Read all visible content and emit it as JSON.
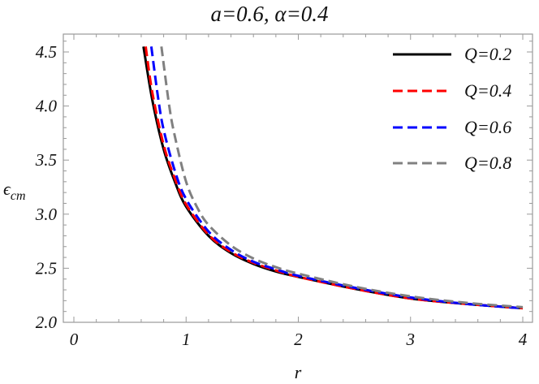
{
  "chart_data": {
    "type": "line",
    "title": "a=0.6, α=0.4",
    "xlabel": "r",
    "ylabel": "ε_cm",
    "ylabel_main": "ϵ",
    "ylabel_sub": "cm",
    "xlim": [
      -0.1,
      4.1
    ],
    "ylim": [
      2.0,
      4.62
    ],
    "xticks": [
      "0",
      "1",
      "2",
      "3",
      "4"
    ],
    "xtick_values": [
      0,
      1,
      2,
      3,
      4
    ],
    "yticks": [
      "2.0",
      "2.5",
      "3.0",
      "3.5",
      "4.0",
      "4.5"
    ],
    "ytick_values": [
      2.0,
      2.5,
      3.0,
      3.5,
      4.0,
      4.5
    ],
    "grid": false,
    "legend_position": "upper right",
    "series": [
      {
        "name": "Q=0.2",
        "color": "#000000",
        "dash": "solid",
        "x": [
          0.62,
          0.7,
          0.8,
          0.9,
          1.0,
          1.2,
          1.4,
          1.6,
          1.8,
          2.0,
          2.5,
          3.0,
          3.5,
          4.0
        ],
        "y": [
          4.55,
          4.05,
          3.6,
          3.3,
          3.07,
          2.8,
          2.64,
          2.54,
          2.47,
          2.42,
          2.31,
          2.22,
          2.17,
          2.13
        ]
      },
      {
        "name": "Q=0.4",
        "color": "#ff0000",
        "dash": "dashed",
        "x": [
          0.64,
          0.7,
          0.8,
          0.9,
          1.0,
          1.2,
          1.4,
          1.6,
          1.8,
          2.0,
          2.5,
          3.0,
          3.5,
          4.0
        ],
        "y": [
          4.55,
          4.12,
          3.64,
          3.33,
          3.09,
          2.81,
          2.65,
          2.55,
          2.48,
          2.42,
          2.31,
          2.22,
          2.17,
          2.13
        ]
      },
      {
        "name": "Q=0.6",
        "color": "#0000ff",
        "dash": "dashed",
        "x": [
          0.69,
          0.75,
          0.8,
          0.9,
          1.0,
          1.2,
          1.4,
          1.6,
          1.8,
          2.0,
          2.5,
          3.0,
          3.5,
          4.0
        ],
        "y": [
          4.55,
          4.08,
          3.78,
          3.4,
          3.14,
          2.84,
          2.67,
          2.56,
          2.49,
          2.43,
          2.32,
          2.23,
          2.17,
          2.13
        ]
      },
      {
        "name": "Q=0.8",
        "color": "#808080",
        "dash": "dashed",
        "x": [
          0.78,
          0.85,
          0.9,
          1.0,
          1.1,
          1.2,
          1.4,
          1.6,
          1.8,
          2.0,
          2.5,
          3.0,
          3.5,
          4.0
        ],
        "y": [
          4.55,
          4.0,
          3.72,
          3.3,
          3.06,
          2.9,
          2.71,
          2.59,
          2.51,
          2.45,
          2.33,
          2.24,
          2.18,
          2.14
        ]
      }
    ]
  },
  "legend": {
    "items": [
      {
        "label": "Q=0.2",
        "color": "#000000",
        "dash": "solid"
      },
      {
        "label": "Q=0.4",
        "color": "#ff0000",
        "dash": "dashed"
      },
      {
        "label": "Q=0.6",
        "color": "#0000ff",
        "dash": "dashed"
      },
      {
        "label": "Q=0.8",
        "color": "#808080",
        "dash": "dashed"
      }
    ]
  }
}
